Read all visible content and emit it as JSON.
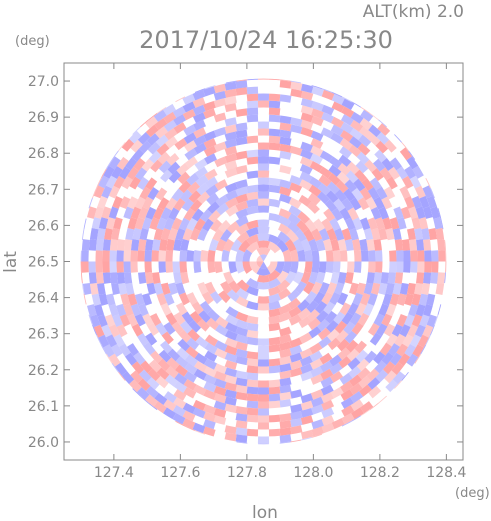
{
  "chart_data": {
    "type": "heatmap",
    "title": "2017/10/24 16:25:30",
    "altitude_label": "ALT(km) 2.0",
    "xlabel": "lon",
    "ylabel": "lat",
    "x_unit": "(deg)",
    "y_unit": "(deg)",
    "xlim": [
      127.25,
      128.45
    ],
    "ylim": [
      25.95,
      27.05
    ],
    "x_ticks": [
      "127.4",
      "127.6",
      "127.8",
      "128.0",
      "128.2",
      "128.4"
    ],
    "y_ticks": [
      "26.0",
      "26.1",
      "26.2",
      "26.3",
      "26.4",
      "26.5",
      "26.6",
      "26.7",
      "26.8",
      "26.9",
      "27.0"
    ],
    "center": {
      "lon": 127.85,
      "lat": 26.5
    },
    "radius_deg": 0.55,
    "colors": {
      "positive": "#ff9a9a",
      "negative": "#9a9aff",
      "neutral": "#ffffff",
      "axis": "#888888"
    }
  }
}
